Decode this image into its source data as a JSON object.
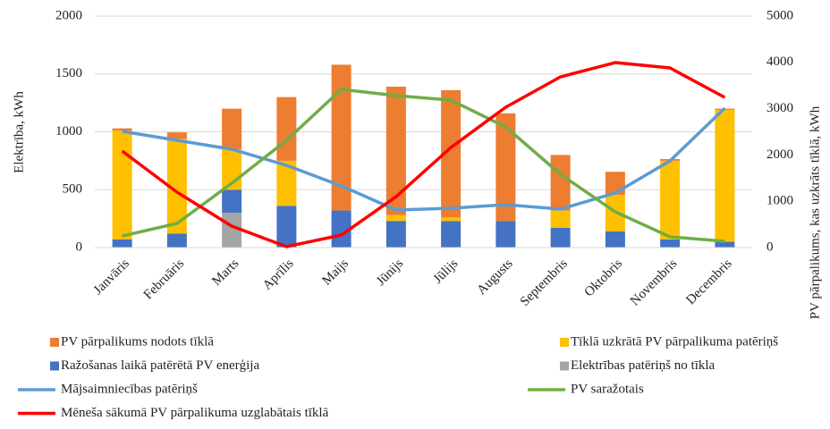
{
  "chart_data": {
    "type": "bar",
    "categories": [
      "Janvāris",
      "Februāris",
      "Marts",
      "Aprīlis",
      "Maijs",
      "Jūnijs",
      "Jūlijs",
      "Augusts",
      "Septembris",
      "Oktobris",
      "Novembris",
      "Decembris"
    ],
    "ylabel": "Elektrība, kWh",
    "y2label": "PV pārpalikums, kas uzkrāts tīklā, kWh",
    "ylim": [
      0,
      2000
    ],
    "yticks": [
      0,
      500,
      1000,
      1500,
      2000
    ],
    "y2lim": [
      0,
      5000
    ],
    "y2ticks": [
      0,
      1000,
      2000,
      3000,
      4000,
      5000
    ],
    "grid": true,
    "stacked": true,
    "legend": "bottom",
    "series": [
      {
        "name": "PV pārpalikums nodots tīklā",
        "type": "bar",
        "color": "#ed7d31",
        "values": [
          20,
          55,
          350,
          550,
          1260,
          1110,
          1100,
          930,
          480,
          200,
          15,
          10
        ]
      },
      {
        "name": "Tīklā uzkrātā PV pārpalikuma patēriņš",
        "type": "bar",
        "color": "#ffc000",
        "values": [
          940,
          820,
          350,
          390,
          0,
          50,
          30,
          0,
          150,
          315,
          680,
          1140
        ]
      },
      {
        "name": "Ražošanas laikā patērētā PV enerģija",
        "type": "bar",
        "color": "#4472c4",
        "values": [
          70,
          120,
          200,
          360,
          320,
          230,
          230,
          230,
          170,
          140,
          70,
          50
        ]
      },
      {
        "name": "Elektrības patēriņš no tīkla",
        "type": "bar",
        "color": "#a5a5a5",
        "values": [
          0,
          0,
          300,
          0,
          0,
          0,
          0,
          0,
          0,
          0,
          0,
          0
        ]
      },
      {
        "name": "Mājsaimniecības patēriņš",
        "type": "line",
        "axis": "y2",
        "color": "#5b9bd5",
        "values": [
          2510,
          2317,
          2124,
          1776,
          1332,
          811,
          849,
          927,
          830,
          1178,
          1873,
          3012
        ]
      },
      {
        "name": "PV saražotais",
        "type": "line",
        "axis": "y2",
        "color": "#70ad47",
        "values": [
          250,
          521,
          1390,
          2317,
          3417,
          3282,
          3185,
          2606,
          1583,
          772,
          232,
          135
        ]
      },
      {
        "name": "Mēneša sākumā PV pārpalikuma uzglabātais tīklā",
        "type": "line",
        "axis": "y2",
        "color": "#ff0000",
        "values": [
          2085,
          1197,
          463,
          20,
          270,
          1100,
          2162,
          3031,
          3687,
          3996,
          3880,
          3243
        ]
      }
    ]
  }
}
